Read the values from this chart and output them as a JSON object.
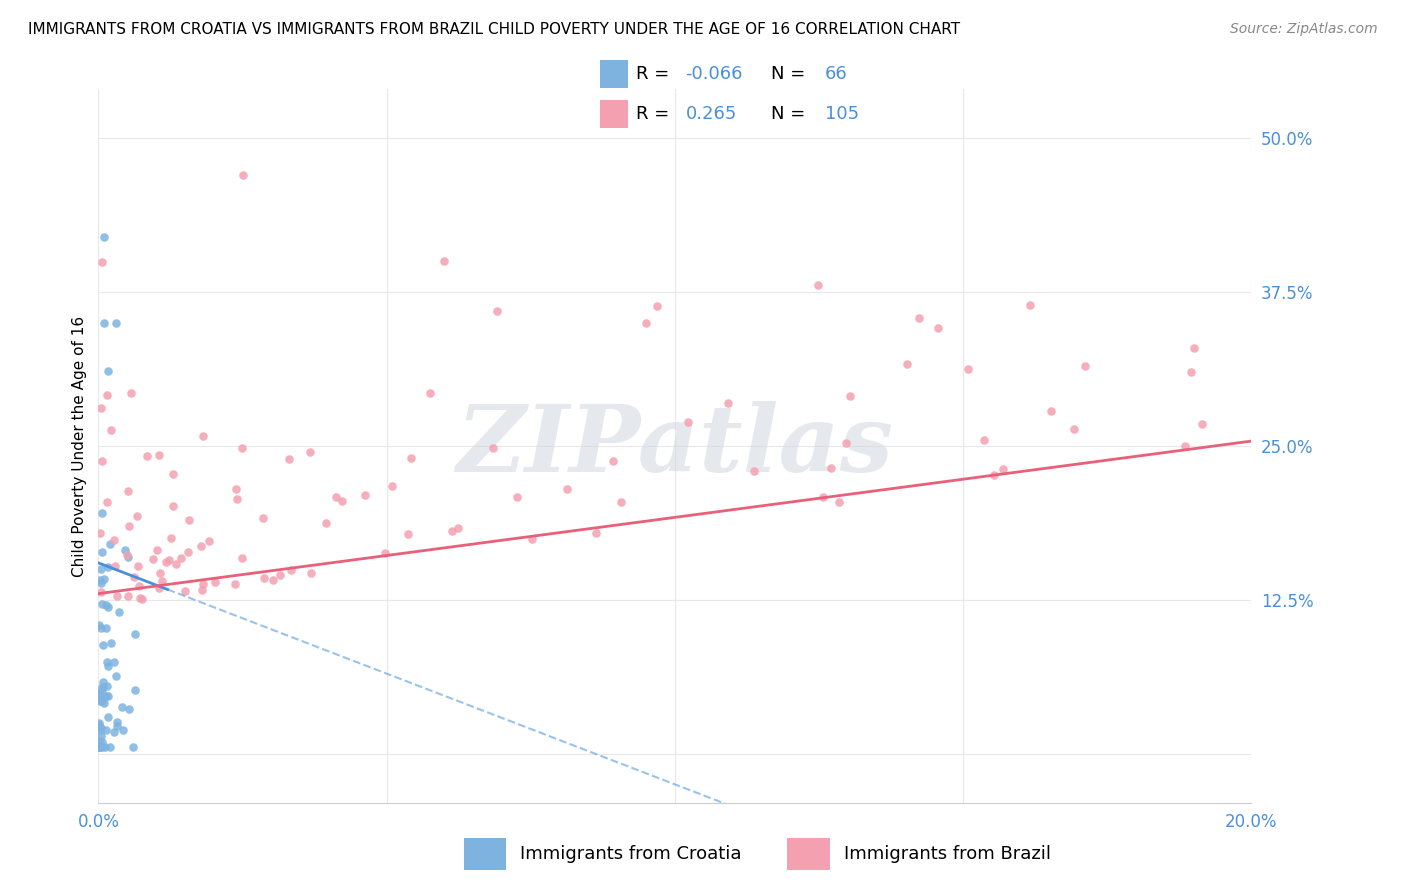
{
  "title": "IMMIGRANTS FROM CROATIA VS IMMIGRANTS FROM BRAZIL CHILD POVERTY UNDER THE AGE OF 16 CORRELATION CHART",
  "source": "Source: ZipAtlas.com",
  "ylabel": "Child Poverty Under the Age of 16",
  "xlim": [
    0.0,
    0.2
  ],
  "ylim": [
    -0.04,
    0.54
  ],
  "yticks": [
    0.0,
    0.125,
    0.25,
    0.375,
    0.5
  ],
  "ytick_labels": [
    "",
    "12.5%",
    "25.0%",
    "37.5%",
    "50.0%"
  ],
  "xticks": [
    0.0,
    0.05,
    0.1,
    0.15,
    0.2
  ],
  "xtick_labels": [
    "0.0%",
    "",
    "",
    "",
    "20.0%"
  ],
  "croatia_R": -0.066,
  "croatia_N": 66,
  "brazil_R": 0.265,
  "brazil_N": 105,
  "croatia_color": "#7eb3e0",
  "brazil_color": "#f4a0b0",
  "croatia_line_color": "#4a90d9",
  "brazil_line_color": "#e8607a",
  "legend_croatia_label": "Immigrants from Croatia",
  "legend_brazil_label": "Immigrants from Brazil",
  "watermark_text": "ZIPatlas",
  "background_color": "#ffffff",
  "grid_color": "#e8e8e8",
  "tick_label_color": "#4a90d9",
  "title_fontsize": 11,
  "source_fontsize": 10,
  "tick_fontsize": 12,
  "ylabel_fontsize": 11,
  "legend_fontsize": 13
}
